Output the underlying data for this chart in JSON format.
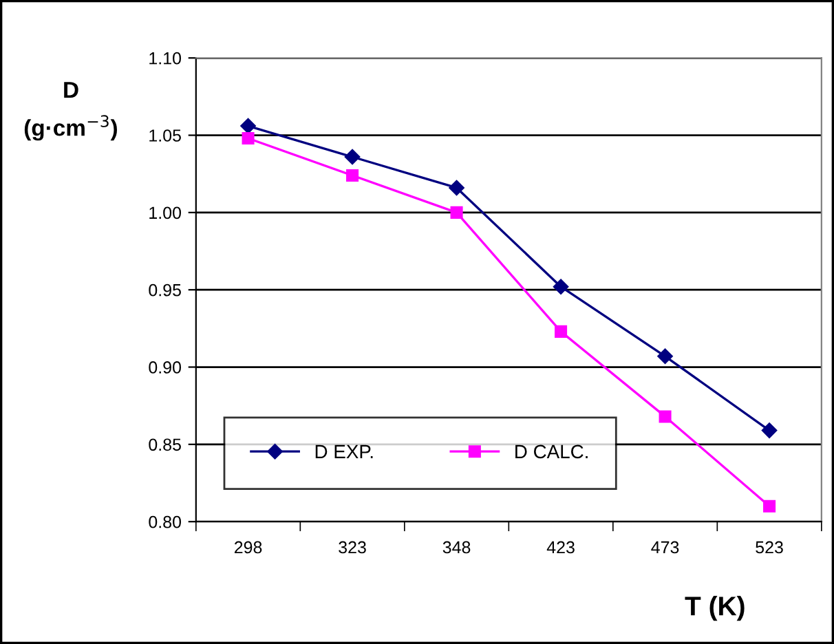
{
  "chart_data": {
    "type": "line",
    "xlabel": "T (K)",
    "ylabel": "D\n(g·cm$^{−3}$)",
    "categories": [
      "298",
      "323",
      "348",
      "423",
      "473",
      "523"
    ],
    "series": [
      {
        "name": "D EXP.",
        "color": "#000080",
        "marker": "diamond",
        "values": [
          1.056,
          1.036,
          1.016,
          0.952,
          0.907,
          0.859
        ]
      },
      {
        "name": "D CALC.",
        "color": "#ff00ff",
        "marker": "square",
        "values": [
          1.048,
          1.024,
          1.0,
          0.923,
          0.868,
          0.81
        ]
      }
    ],
    "ylim": [
      0.8,
      1.1
    ],
    "yticks": [
      {
        "value": 0.8,
        "label": "0.80"
      },
      {
        "value": 0.85,
        "label": "0.85"
      },
      {
        "value": 0.9,
        "label": "0.90"
      },
      {
        "value": 0.95,
        "label": "0.95"
      },
      {
        "value": 1.0,
        "label": "1.00"
      },
      {
        "value": 1.05,
        "label": "1.05"
      },
      {
        "value": 1.1,
        "label": "1.10"
      }
    ],
    "grid": "y",
    "legend": "bottom left"
  }
}
